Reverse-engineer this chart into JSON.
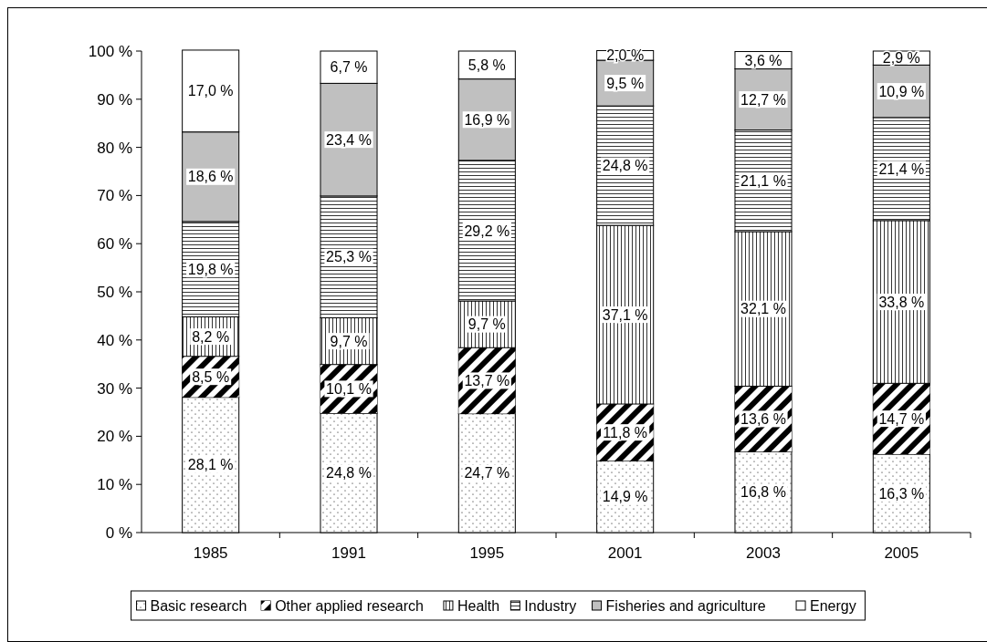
{
  "chart_data": {
    "type": "bar",
    "stacked": true,
    "categories": [
      "1985",
      "1991",
      "1995",
      "2001",
      "2003",
      "2005"
    ],
    "ylim": [
      0,
      100
    ],
    "yticks": [
      {
        "value": 0,
        "label": "0 %"
      },
      {
        "value": 10,
        "label": "10 %"
      },
      {
        "value": 20,
        "label": "20 %"
      },
      {
        "value": 30,
        "label": "30 %"
      },
      {
        "value": 40,
        "label": "40 %"
      },
      {
        "value": 50,
        "label": "50 %"
      },
      {
        "value": 60,
        "label": "60 %"
      },
      {
        "value": 70,
        "label": "70 %"
      },
      {
        "value": 80,
        "label": "80 %"
      },
      {
        "value": 90,
        "label": "90 %"
      },
      {
        "value": 100,
        "label": "100 %"
      }
    ],
    "legend": "bottom",
    "grid": false,
    "series": [
      {
        "name": "Basic research",
        "color": "#ffffff",
        "values": [
          28.1,
          24.8,
          24.7,
          14.9,
          16.8,
          16.3
        ],
        "value_labels": [
          "28,1 %",
          "24,8 %",
          "24,7 %",
          "14,9 %",
          "16,8 %",
          "16,3 %"
        ]
      },
      {
        "name": "Other applied research",
        "color": "#000000",
        "values": [
          8.5,
          10.1,
          13.7,
          11.8,
          13.6,
          14.7
        ],
        "value_labels": [
          "8,5 %",
          "10,1 %",
          "13,7 %",
          "11,8 %",
          "13,6 %",
          "14,7 %"
        ]
      },
      {
        "name": "Health",
        "color": "#ffffff",
        "values": [
          8.2,
          9.7,
          9.7,
          37.1,
          32.1,
          33.8
        ],
        "value_labels": [
          "8,2 %",
          "9,7 %",
          "9,7 %",
          "37,1 %",
          "32,1 %",
          "33,8 %"
        ]
      },
      {
        "name": "Industry",
        "color": "#ffffff",
        "values": [
          19.8,
          25.3,
          29.2,
          24.8,
          21.1,
          21.4
        ],
        "value_labels": [
          "19,8 %",
          "25,3 %",
          "29,2 %",
          "24,8 %",
          "21,1 %",
          "21,4 %"
        ]
      },
      {
        "name": "Fisheries and agriculture",
        "color": "#c0c0c0",
        "values": [
          18.6,
          23.4,
          16.9,
          9.5,
          12.7,
          10.9
        ],
        "value_labels": [
          "18,6 %",
          "23,4 %",
          "16,9 %",
          "9,5 %",
          "12,7 %",
          "10,9 %"
        ]
      },
      {
        "name": "Energy",
        "color": "#ffffff",
        "values": [
          17.0,
          6.7,
          5.8,
          2.0,
          3.6,
          2.9
        ],
        "value_labels": [
          "17,0 %",
          "6,7 %",
          "5,8 %",
          "2,0 %",
          "3,6 %",
          "2,9 %"
        ]
      }
    ]
  }
}
